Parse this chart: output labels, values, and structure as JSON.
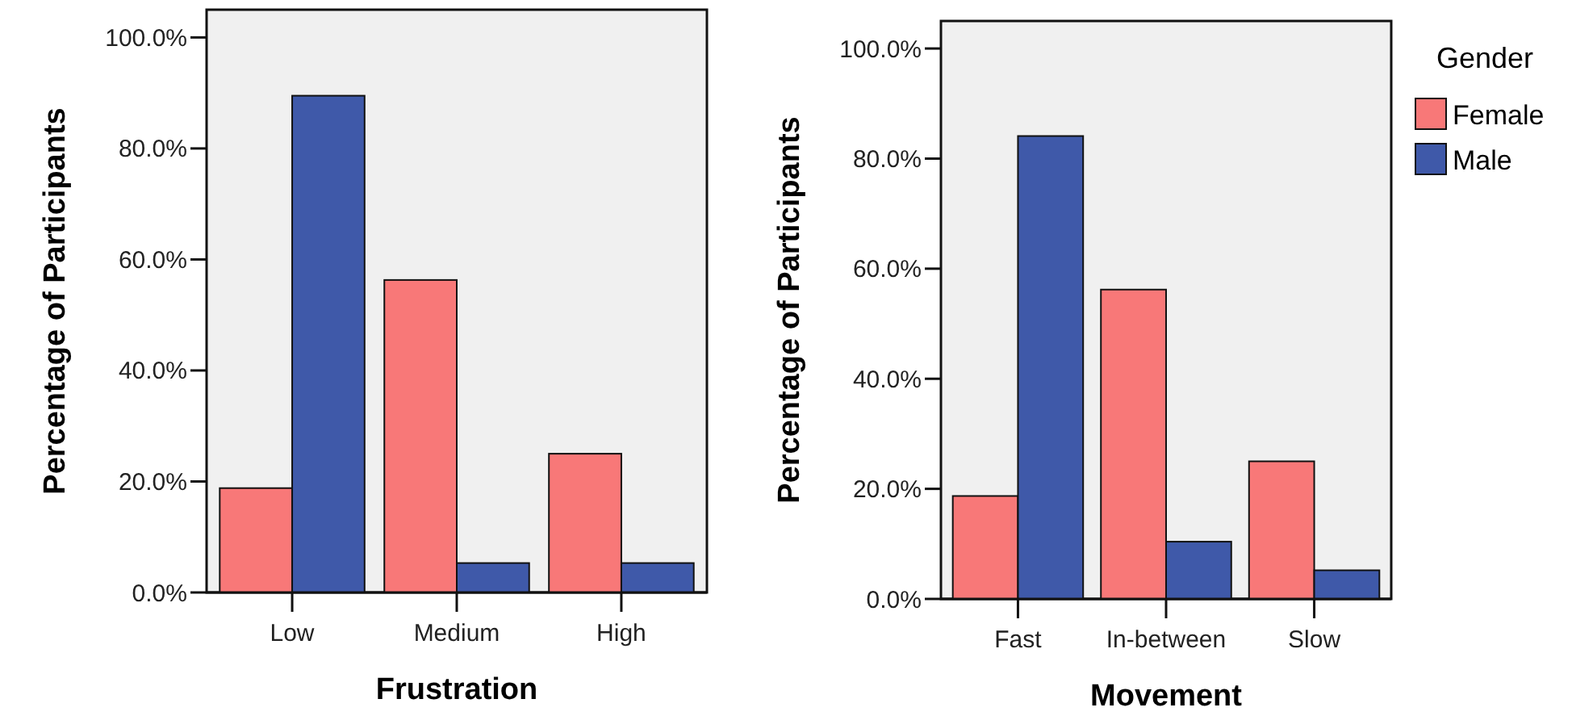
{
  "chart_data": [
    {
      "type": "bar",
      "categories": [
        "Low",
        "Medium",
        "High"
      ],
      "xlabel": "Frustration",
      "ylabel": "Percentage of Participants",
      "ylim": [
        0,
        105
      ],
      "yticks": [
        {
          "value": 0,
          "label": "0.0%"
        },
        {
          "value": 20,
          "label": "20.0%"
        },
        {
          "value": 40,
          "label": "40.0%"
        },
        {
          "value": 60,
          "label": "60.0%"
        },
        {
          "value": 80,
          "label": "80.0%"
        },
        {
          "value": 100,
          "label": "100.0%"
        }
      ],
      "grid": false,
      "legend": false,
      "series": [
        {
          "color": "#f87878",
          "values": [
            18.8,
            56.3,
            25.0
          ]
        },
        {
          "color": "#3f59a9",
          "values": [
            89.5,
            5.3,
            5.3
          ]
        }
      ]
    },
    {
      "type": "bar",
      "categories": [
        "Fast",
        "In-between",
        "Slow"
      ],
      "xlabel": "Movement",
      "ylabel": "Percentage of Participants",
      "legend_title": "Gender",
      "ylim": [
        0,
        105
      ],
      "yticks": [
        {
          "value": 0,
          "label": "0.0%"
        },
        {
          "value": 20,
          "label": "20.0%"
        },
        {
          "value": 40,
          "label": "40.0%"
        },
        {
          "value": 60,
          "label": "60.0%"
        },
        {
          "value": 80,
          "label": "80.0%"
        },
        {
          "value": 100,
          "label": "100.0%"
        }
      ],
      "grid": false,
      "legend": "right",
      "series": [
        {
          "name": "Female",
          "color": "#f87878",
          "values": [
            18.7,
            56.2,
            25.0
          ]
        },
        {
          "name": "Male",
          "color": "#3f59a9",
          "values": [
            84.1,
            10.4,
            5.2
          ]
        }
      ]
    }
  ]
}
